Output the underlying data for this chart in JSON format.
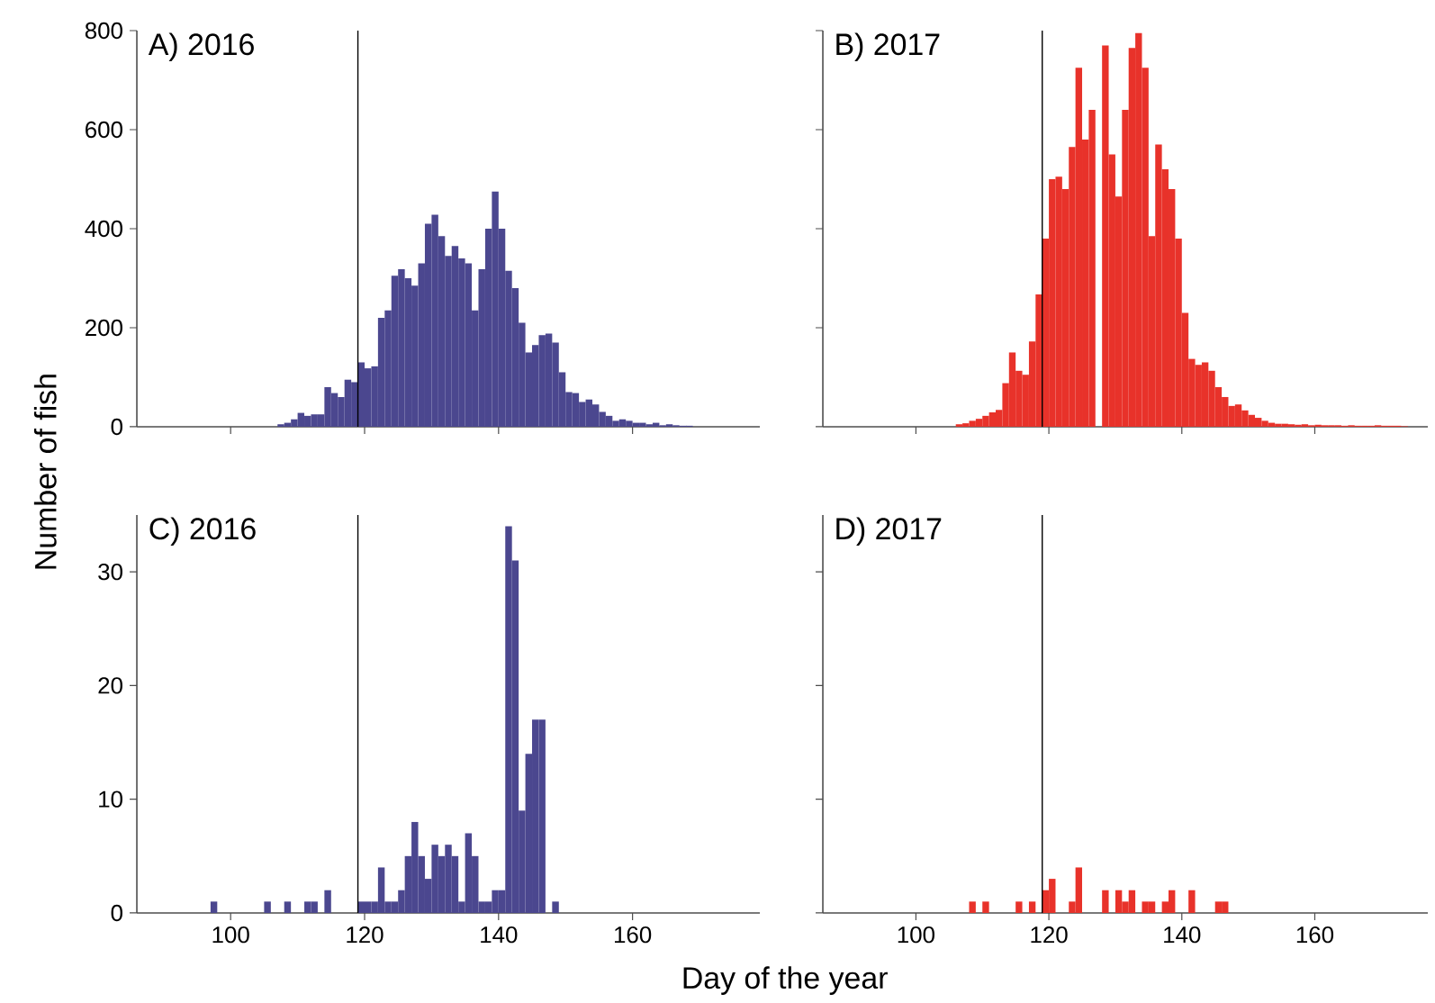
{
  "chart_data": [
    {
      "type": "histogram",
      "title": "A) 2016",
      "ylabel": "Number of fish",
      "color": "#4b478f",
      "xlim": [
        86,
        179
      ],
      "ylim": [
        0,
        800
      ],
      "xticks": [
        100,
        120,
        140,
        160
      ],
      "yticks": [
        0,
        200,
        400,
        600,
        800
      ],
      "tick_labels": "y",
      "grid": false,
      "bins": [
        107,
        108,
        109,
        110,
        111,
        112,
        113,
        114,
        115,
        116,
        117,
        118,
        119,
        120,
        121,
        122,
        123,
        124,
        125,
        126,
        127,
        128,
        129,
        130,
        131,
        132,
        133,
        134,
        135,
        136,
        137,
        138,
        139,
        140,
        141,
        142,
        143,
        144,
        145,
        146,
        147,
        148,
        149,
        150,
        151,
        152,
        153,
        154,
        155,
        156,
        157,
        158,
        159,
        160,
        161,
        162,
        163,
        164,
        165,
        166,
        167,
        168,
        169
      ],
      "values": [
        5,
        8,
        15,
        28,
        22,
        25,
        25,
        80,
        68,
        60,
        95,
        90,
        130,
        118,
        122,
        220,
        235,
        305,
        318,
        300,
        285,
        330,
        410,
        428,
        385,
        345,
        365,
        340,
        330,
        235,
        318,
        400,
        475,
        400,
        315,
        280,
        210,
        150,
        165,
        185,
        188,
        170,
        110,
        70,
        68,
        50,
        55,
        45,
        30,
        22,
        12,
        15,
        12,
        8,
        8,
        5,
        8,
        3,
        5,
        3,
        2,
        2
      ],
      "ref_lines": [
        {
          "axis": "x",
          "value": 119,
          "color": "#000000"
        }
      ]
    },
    {
      "type": "histogram",
      "title": "B) 2017",
      "color": "#e8322a",
      "xlim": [
        86,
        177
      ],
      "ylim": [
        0,
        800
      ],
      "xticks": [
        100,
        120,
        140,
        160
      ],
      "yticks": [
        0,
        200,
        400,
        600,
        800
      ],
      "tick_labels": false,
      "grid": false,
      "bins": [
        106,
        107,
        108,
        109,
        110,
        111,
        112,
        113,
        114,
        115,
        116,
        117,
        118,
        119,
        120,
        121,
        122,
        123,
        124,
        125,
        126,
        127,
        128,
        129,
        130,
        131,
        132,
        133,
        134,
        135,
        136,
        137,
        138,
        139,
        140,
        141,
        142,
        143,
        144,
        145,
        146,
        147,
        148,
        149,
        150,
        151,
        152,
        153,
        154,
        155,
        156,
        157,
        158,
        159,
        160,
        161,
        162,
        163,
        164,
        165,
        166,
        167,
        168,
        169,
        170,
        171,
        172,
        173,
        174
      ],
      "values": [
        5,
        7,
        12,
        16,
        22,
        29,
        34,
        88,
        150,
        113,
        105,
        172,
        267,
        380,
        500,
        505,
        480,
        565,
        725,
        580,
        640,
        0,
        770,
        550,
        465,
        640,
        765,
        795,
        725,
        385,
        570,
        520,
        480,
        380,
        230,
        137,
        125,
        130,
        113,
        80,
        60,
        42,
        45,
        33,
        24,
        18,
        12,
        8,
        6,
        6,
        5,
        4,
        5,
        3,
        4,
        3,
        3,
        3,
        2,
        3,
        2,
        2,
        2,
        3,
        2,
        2,
        2,
        1
      ],
      "ref_lines": [
        {
          "axis": "x",
          "value": 119,
          "color": "#000000"
        }
      ]
    },
    {
      "type": "histogram",
      "title": "C) 2016",
      "xlabel": "Day of the year",
      "color": "#4b478f",
      "xlim": [
        86,
        179
      ],
      "ylim": [
        0,
        35
      ],
      "xticks": [
        100,
        120,
        140,
        160
      ],
      "yticks": [
        0,
        10,
        20,
        30
      ],
      "grid": false,
      "bins": [
        97,
        98,
        99,
        100,
        101,
        102,
        103,
        104,
        105,
        106,
        107,
        108,
        109,
        110,
        111,
        112,
        113,
        114,
        115,
        116,
        117,
        118,
        119,
        120,
        121,
        122,
        123,
        124,
        125,
        126,
        127,
        128,
        129,
        130,
        131,
        132,
        133,
        134,
        135,
        136,
        137,
        138,
        139,
        140,
        141,
        142,
        143,
        144,
        145,
        146,
        147,
        148,
        149
      ],
      "values": [
        1,
        0,
        0,
        0,
        0,
        0,
        0,
        0,
        1,
        0,
        0,
        1,
        0,
        0,
        1,
        1,
        0,
        2,
        0,
        0,
        0,
        0,
        1,
        1,
        1,
        4,
        1,
        1,
        2,
        5,
        8,
        5,
        3,
        6,
        5,
        6,
        5,
        1,
        7,
        5,
        1,
        1,
        2,
        2,
        34,
        31,
        9,
        14,
        17,
        17,
        0,
        1
      ],
      "ref_lines": [
        {
          "axis": "x",
          "value": 119,
          "color": "#000000"
        }
      ]
    },
    {
      "type": "histogram",
      "title": "D) 2017",
      "color": "#e8322a",
      "xlim": [
        86,
        177
      ],
      "ylim": [
        0,
        35
      ],
      "xticks": [
        100,
        120,
        140,
        160
      ],
      "yticks": [
        0,
        10,
        20,
        30
      ],
      "tick_labels": "x",
      "grid": false,
      "bins": [
        108,
        109,
        110,
        111,
        112,
        113,
        114,
        115,
        116,
        117,
        118,
        119,
        120,
        121,
        122,
        123,
        124,
        125,
        126,
        127,
        128,
        129,
        130,
        131,
        132,
        133,
        134,
        135,
        136,
        137,
        138,
        139,
        140,
        141,
        142,
        143,
        144,
        145,
        146,
        147
      ],
      "values": [
        1,
        0,
        1,
        0,
        0,
        0,
        0,
        1,
        0,
        1,
        0,
        2,
        3,
        0,
        0,
        1,
        4,
        0,
        0,
        0,
        2,
        0,
        2,
        1,
        2,
        0,
        1,
        1,
        0,
        1,
        2,
        0,
        0,
        2,
        0,
        0,
        0,
        1,
        1
      ],
      "ref_lines": [
        {
          "axis": "x",
          "value": 119,
          "color": "#000000"
        }
      ]
    }
  ]
}
